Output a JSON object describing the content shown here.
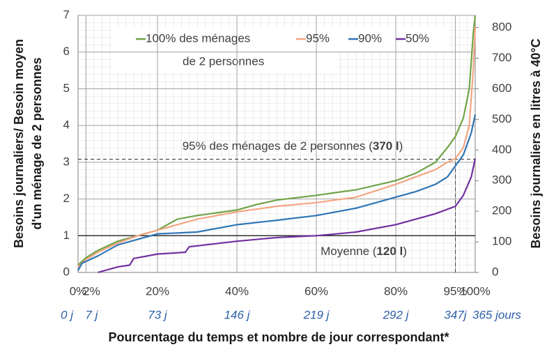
{
  "chart_data": {
    "type": "line",
    "y_label_lines": [
      "Besoins journaliers/ Besoin moyen",
      "d'un ménage de 2 personnes"
    ],
    "y2_label": "Besoins journaliers en litres à 40°C",
    "x_label": "Pourcentage du temps et nombre de jour correspondant*",
    "xlim": [
      0,
      100
    ],
    "xticks": [
      {
        "value": 0,
        "label": "0%"
      },
      {
        "value": 2,
        "label": "2%"
      },
      {
        "value": 20,
        "label": "20%"
      },
      {
        "value": 40,
        "label": "40%"
      },
      {
        "value": 60,
        "label": "60%"
      },
      {
        "value": 80,
        "label": "80%"
      },
      {
        "value": 95,
        "label": "95%"
      },
      {
        "value": 100,
        "label": "100%"
      }
    ],
    "x2ticks": [
      {
        "value": 0,
        "label": "0 j"
      },
      {
        "value": 2,
        "label": "7 j"
      },
      {
        "value": 20,
        "label": "73 j"
      },
      {
        "value": 40,
        "label": "146 j"
      },
      {
        "value": 60,
        "label": "219 j"
      },
      {
        "value": 80,
        "label": "292 j"
      },
      {
        "value": 95,
        "label": "347j"
      },
      {
        "value": 100,
        "label": "365 jours"
      }
    ],
    "ylim": [
      0,
      7
    ],
    "yticks": [
      0,
      1,
      2,
      3,
      4,
      5,
      6,
      7
    ],
    "y2lim": [
      0,
      840
    ],
    "y2ticks": [
      0,
      100,
      200,
      300,
      400,
      500,
      600,
      700,
      800
    ],
    "grid": true,
    "legend_note": "de 2 personnes",
    "series": [
      {
        "name": "100% des ménages",
        "color": "#70a448",
        "x": [
          0,
          2,
          5,
          10,
          15,
          20,
          25,
          30,
          40,
          45,
          50,
          60,
          70,
          80,
          85,
          90,
          93,
          95,
          97,
          98.5,
          99.5,
          100
        ],
        "values": [
          0.2,
          0.4,
          0.6,
          0.85,
          1.0,
          1.15,
          1.45,
          1.55,
          1.7,
          1.85,
          1.97,
          2.1,
          2.25,
          2.5,
          2.7,
          3.0,
          3.4,
          3.7,
          4.2,
          5.0,
          6.5,
          7.0
        ]
      },
      {
        "name": "95%",
        "color": "#f4a582",
        "x": [
          0,
          2,
          5,
          10,
          15,
          20,
          25,
          30,
          40,
          50,
          60,
          70,
          80,
          85,
          90,
          93,
          95,
          97,
          98.5,
          99.5,
          100
        ],
        "values": [
          0.15,
          0.35,
          0.55,
          0.8,
          1.0,
          1.15,
          1.3,
          1.45,
          1.65,
          1.8,
          1.9,
          2.05,
          2.4,
          2.6,
          2.8,
          3.0,
          3.1,
          3.4,
          4.0,
          5.5,
          6.7
        ]
      },
      {
        "name": "90%",
        "color": "#2e75b6",
        "x": [
          0,
          1,
          5,
          10,
          15,
          20,
          30,
          40,
          50,
          60,
          70,
          80,
          85,
          90,
          93,
          95,
          97,
          99,
          100
        ],
        "values": [
          0.05,
          0.25,
          0.45,
          0.75,
          0.9,
          1.05,
          1.1,
          1.3,
          1.42,
          1.55,
          1.75,
          2.05,
          2.2,
          2.4,
          2.6,
          2.9,
          3.2,
          3.8,
          4.3
        ]
      },
      {
        "name": "50%",
        "color": "#7030a0",
        "x": [
          5,
          10,
          13,
          14,
          20,
          27,
          28,
          40,
          50,
          60,
          70,
          80,
          90,
          95,
          97,
          99,
          100
        ],
        "values": [
          0.0,
          0.15,
          0.2,
          0.38,
          0.5,
          0.55,
          0.7,
          0.85,
          0.95,
          1.0,
          1.1,
          1.3,
          1.6,
          1.8,
          2.1,
          2.6,
          3.1
        ]
      }
    ],
    "ref_lines": [
      {
        "axis": "y2",
        "value": 370,
        "dash": true
      },
      {
        "axis": "x",
        "value": 95,
        "dash": true,
        "to_y2": 370
      },
      {
        "axis": "y",
        "value": 1,
        "dash": false
      }
    ],
    "annotations": [
      {
        "parts": [
          "95% des ménages de 2 personnes (",
          "370 l",
          ")"
        ]
      },
      {
        "parts": [
          "Moyenne (",
          "120 l",
          ")"
        ]
      }
    ]
  }
}
